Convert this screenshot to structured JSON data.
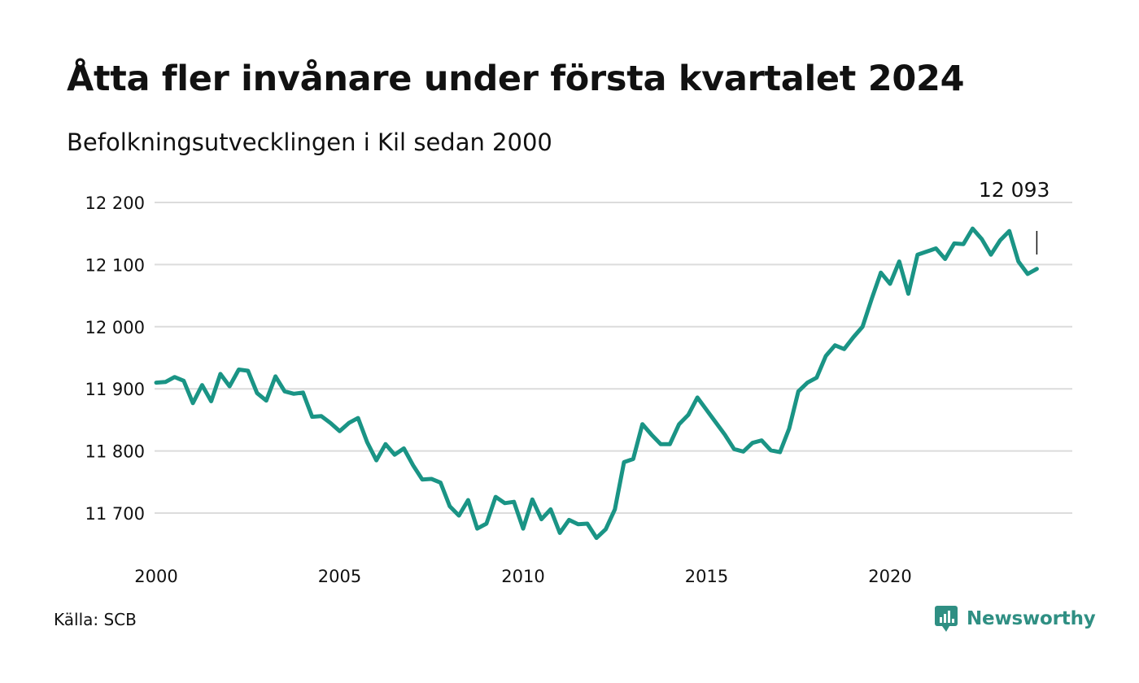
{
  "header": {
    "title": "Åtta fler invånare under första kvartalet 2024",
    "subtitle": "Befolkningsutvecklingen i Kil sedan 2000"
  },
  "footer": {
    "source": "Källa: SCB",
    "brand": "Newsworthy",
    "brand_icon": "chat-bar-chart-icon"
  },
  "colors": {
    "line": "#1a9485",
    "brand": "#2f8f83",
    "grid": "#dcdcdc"
  },
  "chart_data": {
    "type": "line",
    "title": "Åtta fler invånare under första kvartalet 2024",
    "subtitle": "Befolkningsutvecklingen i Kil sedan 2000",
    "xlabel": "",
    "ylabel": "",
    "x_ticks": [
      "2000",
      "2005",
      "2010",
      "2015",
      "2020"
    ],
    "y_ticks": [
      "11 700",
      "11 800",
      "11 900",
      "12 000",
      "12 100",
      "12 200"
    ],
    "xlim": [
      2000,
      2024.25
    ],
    "ylim": [
      11640,
      12215
    ],
    "grid": true,
    "legend": "none",
    "last_label": "12 093",
    "series": [
      {
        "x_start": 2000.0,
        "x_step": 0.25,
        "values": [
          11910,
          11911,
          11919,
          11913,
          11877,
          11906,
          11880,
          11924,
          11904,
          11931,
          11929,
          11893,
          11881,
          11920,
          11896,
          11892,
          11894,
          11855,
          11856,
          11845,
          11832,
          11845,
          11853,
          11814,
          11785,
          11811,
          11794,
          11804,
          11777,
          11754,
          11755,
          11749,
          11711,
          11696,
          11721,
          11675,
          11683,
          11726,
          11716,
          11718,
          11675,
          11722,
          11690,
          11706,
          11668,
          11689,
          11682,
          11683,
          11660,
          11674,
          11706,
          11782,
          11787,
          11843,
          11826,
          11811,
          11811,
          11843,
          11858,
          11886,
          11866,
          11846,
          11826,
          11803,
          11799,
          11813,
          11817,
          11801,
          11798,
          11836,
          11896,
          11910,
          11918,
          11953,
          11970,
          11964,
          11983,
          12000,
          12045,
          12087,
          12069,
          12105,
          12053,
          12116,
          12121,
          12126,
          12109,
          12134,
          12133,
          12158,
          12141,
          12116,
          12139,
          12154,
          12105,
          12085,
          12093
        ]
      }
    ]
  }
}
